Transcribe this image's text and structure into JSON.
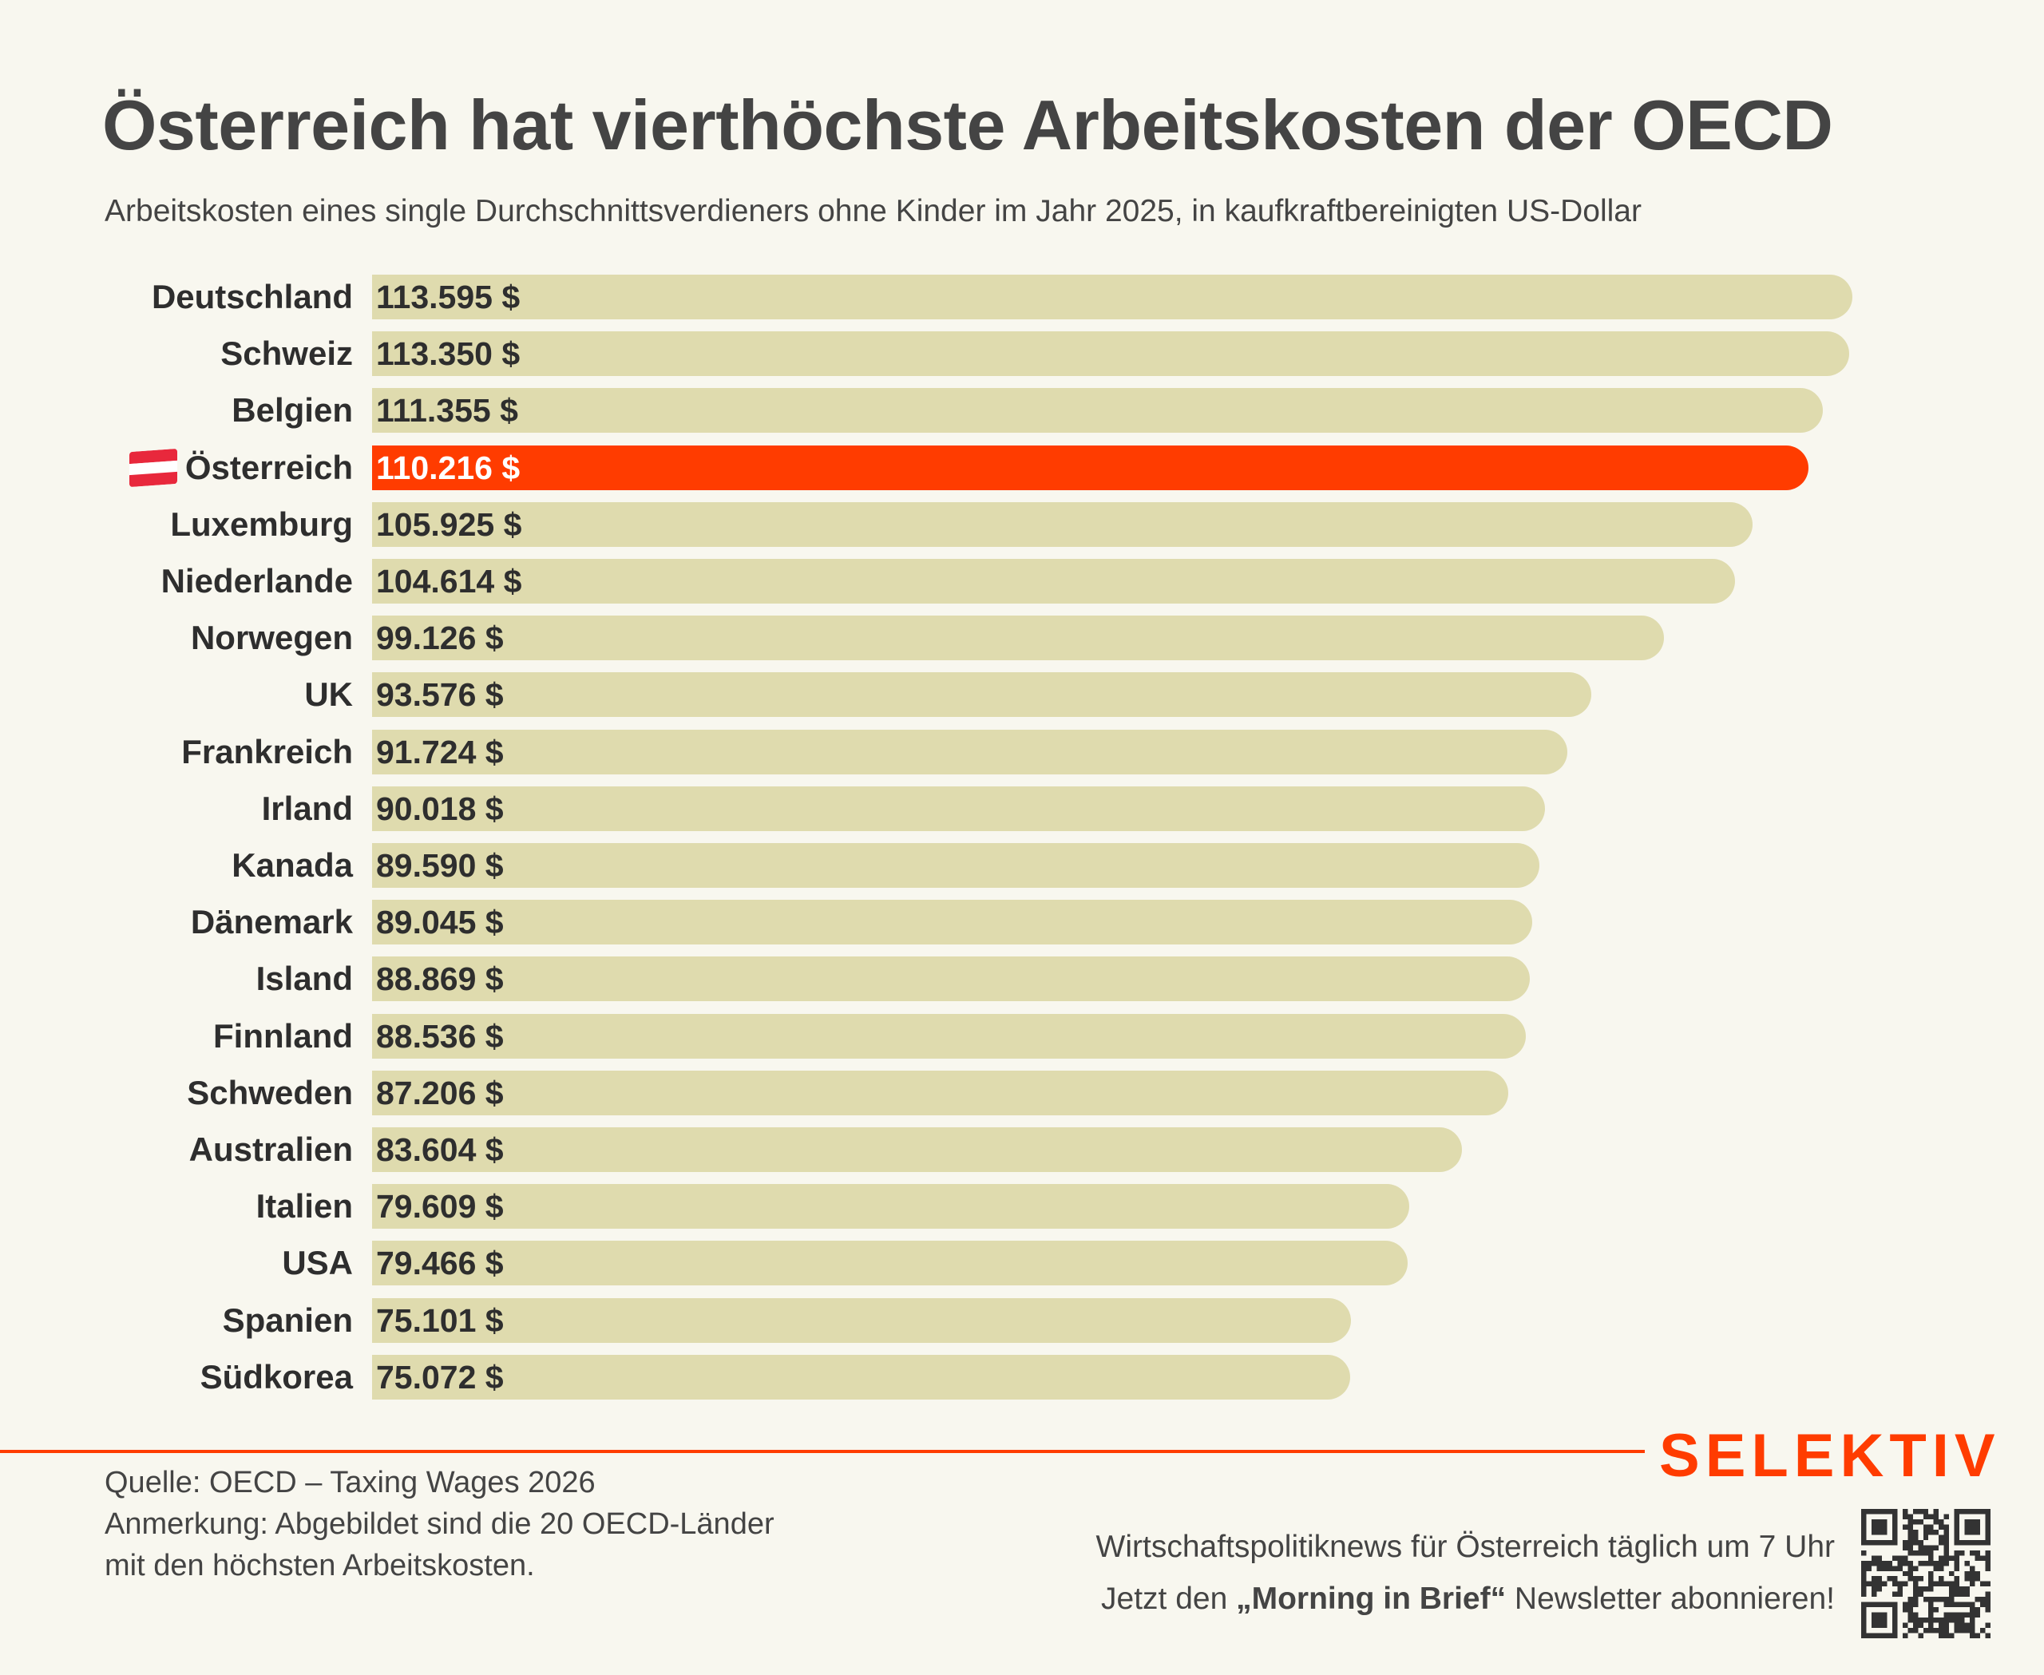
{
  "header": {
    "title": "Österreich hat vierthöchste Arbeitskosten der OECD",
    "subtitle": "Arbeitskosten eines single Durchschnittsverdieners ohne Kinder im Jahr 2025, in kaufkraftbereinigten US-Dollar"
  },
  "chart_data": {
    "type": "bar",
    "orientation": "horizontal",
    "title": "Österreich hat vierthöchste Arbeitskosten der OECD",
    "subtitle": "Arbeitskosten eines single Durchschnittsverdieners ohne Kinder im Jahr 2025, in kaufkraftbereinigten US-Dollar",
    "xlabel": "",
    "ylabel": "",
    "xlim": [
      0,
      113595
    ],
    "grid": false,
    "unit": "$",
    "highlight_category": "Österreich",
    "highlight_icon": "austria-flag-icon",
    "categories": [
      "Deutschland",
      "Schweiz",
      "Belgien",
      "Österreich",
      "Luxemburg",
      "Niederlande",
      "Norwegen",
      "UK",
      "Frankreich",
      "Irland",
      "Kanada",
      "Dänemark",
      "Island",
      "Finnland",
      "Schweden",
      "Australien",
      "Italien",
      "USA",
      "Spanien",
      "Südkorea"
    ],
    "values": [
      113595,
      113350,
      111355,
      110216,
      105925,
      104614,
      99126,
      93576,
      91724,
      90018,
      89590,
      89045,
      88869,
      88536,
      87206,
      83604,
      79609,
      79466,
      75101,
      75072
    ],
    "value_labels": [
      "113.595 $",
      "113.350 $",
      "111.355 $",
      "110.216 $",
      "105.925 $",
      "104.614 $",
      "99.126 $",
      "93.576 $",
      "91.724 $",
      "90.018 $",
      "89.590 $",
      "89.045 $",
      "88.869 $",
      "88.536 $",
      "87.206 $",
      "83.604 $",
      "79.609 $",
      "79.466 $",
      "75.101 $",
      "75.072 $"
    ],
    "colors": {
      "default": "#dfdbae",
      "highlight": "#ff3c00"
    }
  },
  "footer": {
    "source": "Quelle: OECD – Taxing Wages 2026",
    "note_line1": "Anmerkung: Abgebildet sind die 20 OECD-Länder",
    "note_line2": "mit den höchsten Arbeitskosten.",
    "brand": "SELEKTIV",
    "promo_line1": "Wirtschaftspolitiknews für Österreich täglich um 7 Uhr",
    "promo_line2_pre": "Jetzt den ",
    "promo_line2_bold": "„Morning in Brief“",
    "promo_line2_post": " Newsletter abonnieren!",
    "qr_icon": "qr-code-icon"
  },
  "colors": {
    "background": "#f8f7ef",
    "accent": "#ff3c00",
    "bar": "#dfdbae",
    "text": "#2e2e2e"
  }
}
